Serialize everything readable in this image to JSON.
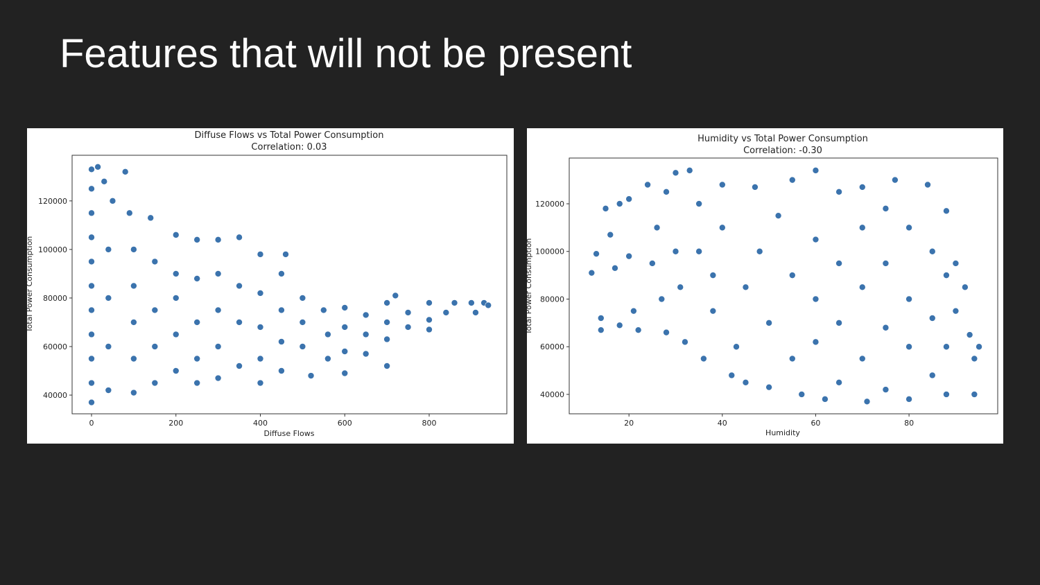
{
  "slide": {
    "title": "Features that will not be present"
  },
  "colors": {
    "background": "#222222",
    "marker": "#3b73ad",
    "marker_edge": "#ffffff"
  },
  "chart_data": [
    {
      "type": "scatter",
      "title": "Diffuse Flows vs Total Power Consumption",
      "subtitle": "Correlation: 0.03",
      "xlabel": "Diffuse Flows",
      "ylabel": "Total Power Consumption",
      "xlim": [
        -46,
        984
      ],
      "ylim": [
        32300,
        138800
      ],
      "xticks": [
        0,
        200,
        400,
        600,
        800
      ],
      "yticks": [
        40000,
        60000,
        80000,
        100000,
        120000
      ],
      "grid": false,
      "points": [
        [
          0,
          37000
        ],
        [
          0,
          45000
        ],
        [
          0,
          55000
        ],
        [
          0,
          65000
        ],
        [
          0,
          75000
        ],
        [
          0,
          85000
        ],
        [
          0,
          95000
        ],
        [
          0,
          105000
        ],
        [
          0,
          115000
        ],
        [
          0,
          125000
        ],
        [
          0,
          133000
        ],
        [
          15,
          134000
        ],
        [
          30,
          128000
        ],
        [
          50,
          120000
        ],
        [
          40,
          100000
        ],
        [
          40,
          80000
        ],
        [
          40,
          60000
        ],
        [
          40,
          42000
        ],
        [
          80,
          132000
        ],
        [
          90,
          115000
        ],
        [
          100,
          100000
        ],
        [
          100,
          85000
        ],
        [
          100,
          70000
        ],
        [
          100,
          55000
        ],
        [
          100,
          41000
        ],
        [
          140,
          113000
        ],
        [
          150,
          95000
        ],
        [
          150,
          75000
        ],
        [
          150,
          60000
        ],
        [
          150,
          45000
        ],
        [
          200,
          106000
        ],
        [
          200,
          90000
        ],
        [
          200,
          80000
        ],
        [
          200,
          65000
        ],
        [
          200,
          50000
        ],
        [
          250,
          104000
        ],
        [
          250,
          88000
        ],
        [
          250,
          70000
        ],
        [
          250,
          55000
        ],
        [
          250,
          45000
        ],
        [
          300,
          104000
        ],
        [
          300,
          90000
        ],
        [
          300,
          75000
        ],
        [
          300,
          60000
        ],
        [
          300,
          47000
        ],
        [
          350,
          105000
        ],
        [
          350,
          85000
        ],
        [
          350,
          70000
        ],
        [
          350,
          52000
        ],
        [
          400,
          98000
        ],
        [
          400,
          82000
        ],
        [
          400,
          68000
        ],
        [
          400,
          55000
        ],
        [
          400,
          45000
        ],
        [
          450,
          90000
        ],
        [
          460,
          98000
        ],
        [
          450,
          75000
        ],
        [
          450,
          62000
        ],
        [
          450,
          50000
        ],
        [
          500,
          80000
        ],
        [
          500,
          70000
        ],
        [
          500,
          60000
        ],
        [
          520,
          48000
        ],
        [
          550,
          75000
        ],
        [
          560,
          65000
        ],
        [
          560,
          55000
        ],
        [
          600,
          76000
        ],
        [
          600,
          68000
        ],
        [
          600,
          58000
        ],
        [
          600,
          49000
        ],
        [
          650,
          73000
        ],
        [
          650,
          65000
        ],
        [
          650,
          57000
        ],
        [
          700,
          78000
        ],
        [
          700,
          70000
        ],
        [
          700,
          63000
        ],
        [
          700,
          52000
        ],
        [
          720,
          81000
        ],
        [
          750,
          74000
        ],
        [
          750,
          68000
        ],
        [
          800,
          78000
        ],
        [
          800,
          71000
        ],
        [
          800,
          67000
        ],
        [
          840,
          74000
        ],
        [
          860,
          78000
        ],
        [
          900,
          78000
        ],
        [
          910,
          74000
        ],
        [
          930,
          78000
        ],
        [
          940,
          77000
        ]
      ]
    },
    {
      "type": "scatter",
      "title": "Humidity vs Total Power Consumption",
      "subtitle": "Correlation: -0.30",
      "xlabel": "Humidity",
      "ylabel": "Total Power Consumption",
      "xlim": [
        7.2,
        99
      ],
      "ylim": [
        31850,
        139200
      ],
      "xticks": [
        20,
        40,
        60,
        80
      ],
      "yticks": [
        40000,
        60000,
        80000,
        100000,
        120000
      ],
      "grid": false,
      "points": [
        [
          12,
          91000
        ],
        [
          13,
          99000
        ],
        [
          14,
          67000
        ],
        [
          14,
          72000
        ],
        [
          15,
          118000
        ],
        [
          16,
          107000
        ],
        [
          17,
          93000
        ],
        [
          18,
          120000
        ],
        [
          18,
          69000
        ],
        [
          20,
          98000
        ],
        [
          20,
          122000
        ],
        [
          21,
          75000
        ],
        [
          22,
          67000
        ],
        [
          24,
          128000
        ],
        [
          25,
          95000
        ],
        [
          26,
          110000
        ],
        [
          27,
          80000
        ],
        [
          28,
          66000
        ],
        [
          28,
          125000
        ],
        [
          30,
          133000
        ],
        [
          30,
          100000
        ],
        [
          31,
          85000
        ],
        [
          32,
          62000
        ],
        [
          33,
          134000
        ],
        [
          35,
          120000
        ],
        [
          35,
          100000
        ],
        [
          36,
          55000
        ],
        [
          38,
          90000
        ],
        [
          38,
          75000
        ],
        [
          40,
          128000
        ],
        [
          40,
          110000
        ],
        [
          42,
          48000
        ],
        [
          43,
          60000
        ],
        [
          45,
          45000
        ],
        [
          45,
          85000
        ],
        [
          47,
          127000
        ],
        [
          48,
          100000
        ],
        [
          50,
          70000
        ],
        [
          50,
          43000
        ],
        [
          52,
          115000
        ],
        [
          55,
          130000
        ],
        [
          55,
          90000
        ],
        [
          55,
          55000
        ],
        [
          57,
          40000
        ],
        [
          60,
          134000
        ],
        [
          60,
          105000
        ],
        [
          60,
          80000
        ],
        [
          60,
          62000
        ],
        [
          62,
          38000
        ],
        [
          65,
          125000
        ],
        [
          65,
          95000
        ],
        [
          65,
          70000
        ],
        [
          65,
          45000
        ],
        [
          70,
          127000
        ],
        [
          70,
          110000
        ],
        [
          70,
          85000
        ],
        [
          70,
          55000
        ],
        [
          71,
          37000
        ],
        [
          75,
          118000
        ],
        [
          75,
          95000
        ],
        [
          75,
          68000
        ],
        [
          75,
          42000
        ],
        [
          77,
          130000
        ],
        [
          80,
          110000
        ],
        [
          80,
          80000
        ],
        [
          80,
          60000
        ],
        [
          80,
          38000
        ],
        [
          84,
          128000
        ],
        [
          85,
          100000
        ],
        [
          85,
          72000
        ],
        [
          85,
          48000
        ],
        [
          88,
          117000
        ],
        [
          88,
          90000
        ],
        [
          88,
          60000
        ],
        [
          88,
          40000
        ],
        [
          90,
          95000
        ],
        [
          90,
          75000
        ],
        [
          92,
          85000
        ],
        [
          93,
          65000
        ],
        [
          94,
          55000
        ],
        [
          94,
          40000
        ],
        [
          95,
          60000
        ]
      ]
    }
  ]
}
